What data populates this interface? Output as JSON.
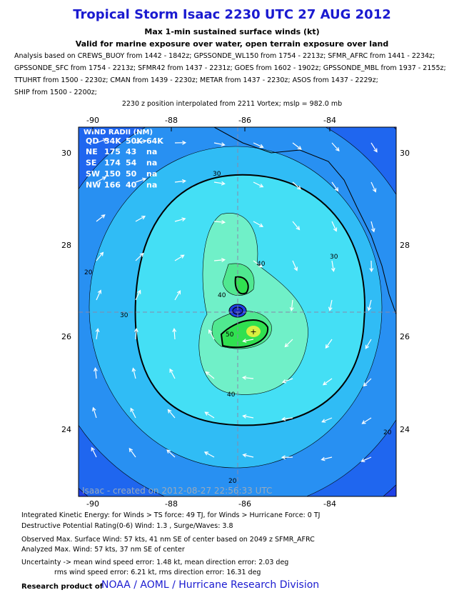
{
  "title": "Tropical Storm Isaac 2230 UTC 27 AUG 2012",
  "subtitle_lines": [
    "Max 1-min sustained surface winds (kt)",
    "Valid for marine exposure over water, open terrain exposure over land"
  ],
  "analysis_lines": [
    "Analysis based on CREWS_BUOY from 1442 - 1842z; GPSSONDE_WL150 from 1754 - 2213z; SFMR_AFRC from 1441 - 2234z;",
    "GPSSONDE_SFC from 1754 - 2213z; SFMR42 from 1437 - 2231z; GOES from 1602 - 1902z; GPSSONDE_MBL from 1937 - 2155z;",
    "TTUHRT from 1500 - 2230z; CMAN from 1439 - 2230z; METAR from 1437 - 2230z; ASOS from 1437 - 2229z;",
    "SHIP from 1500 - 2200z;"
  ],
  "position_note": "2230 z position interpolated from 2211 Vortex; mslp = 982.0 mb",
  "map": {
    "lon_labels": [
      "-90",
      "-88",
      "-86",
      "-84"
    ],
    "lat_labels": [
      "30",
      "28",
      "26",
      "24"
    ],
    "wind_radii": {
      "title": "WIND RADII (NM)",
      "header": [
        "QD",
        "34K",
        "50K",
        "64K"
      ],
      "rows": [
        [
          "NE",
          "175",
          "43",
          "na"
        ],
        [
          "SE",
          "174",
          "54",
          "na"
        ],
        [
          "SW",
          "150",
          "50",
          "na"
        ],
        [
          "NW",
          "166",
          "40",
          "na"
        ]
      ]
    },
    "contour_labels": [
      "30",
      "20",
      "30",
      "40",
      "40",
      "50",
      "40",
      "30",
      "20",
      "20"
    ],
    "credit": "Isaac - created on 2012-08-27 22:56:33 UTC"
  },
  "footer": {
    "lines": [
      "Integrated Kinetic Energy: for Winds > TS force: 49 TJ, for Winds > Hurricane Force: 0 TJ",
      "Destructive Potential Rating(0-6)  Wind: 1.3 , Surge/Waves: 3.8",
      "Observed Max. Surface Wind: 57 kts, 41 nm SE of center based on 2049 z SFMR_AFRC",
      "Analyzed Max. Wind: 57 kts, 37 nm  SE of center",
      "Uncertainty -> mean wind speed error: 1.48 kt, mean direction error: 2.03 deg",
      "rms wind speed error: 6.21 kt, rms direction error: 16.31 deg"
    ],
    "research_prefix": "Research product of",
    "research_org": "NOAA / AOML / Hurricane Research Division"
  }
}
